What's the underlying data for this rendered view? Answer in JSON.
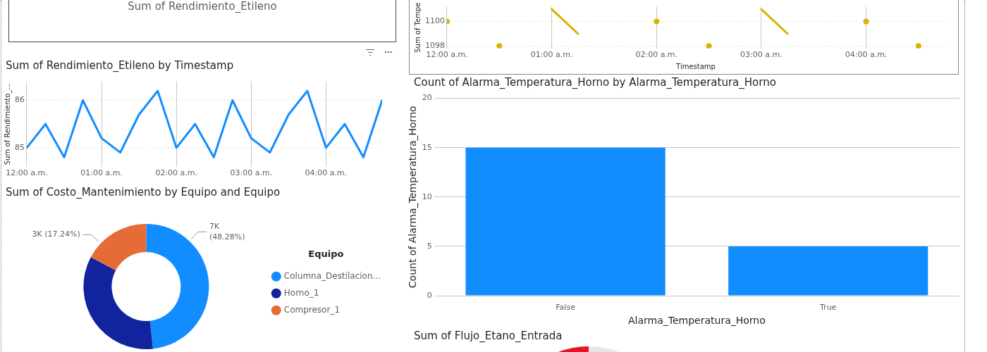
{
  "chart_data": [
    {
      "type": "other",
      "title": "Sum of Rendimiento_Etileno"
    },
    {
      "type": "line",
      "xlabel": "Timestamp",
      "ylabel": "Sum of Tempe",
      "x": [
        0,
        0.25,
        0.5,
        0.75,
        1,
        1.25,
        1.5,
        1.75,
        2,
        2.25,
        2.5,
        2.75,
        3,
        3.25,
        3.5,
        3.75,
        4,
        4.25,
        4.5
      ],
      "xlim": [
        0,
        4.75
      ],
      "xticks": [
        {
          "value": 0,
          "label": "12:00 a.m."
        },
        {
          "value": 1,
          "label": "01:00 a.m."
        },
        {
          "value": 2,
          "label": "02:00 a.m."
        },
        {
          "value": 3,
          "label": "03:00 a.m."
        },
        {
          "value": 4,
          "label": "04:00 a.m."
        }
      ],
      "ylim": [
        1097.8,
        1101.2
      ],
      "yticks": [
        {
          "value": 1098,
          "label": "1098"
        },
        {
          "value": 1100,
          "label": "1100"
        }
      ],
      "grid": true,
      "line_style": "solid",
      "series": [
        {
          "color": "#d9b300",
          "values": [
            1100,
            null,
            1098,
            null,
            1101,
            1099,
            null,
            null,
            1100,
            null,
            1098,
            null,
            1101,
            1099,
            null,
            null,
            1100,
            null,
            1098
          ]
        }
      ]
    },
    {
      "type": "line",
      "title": "Sum of Rendimiento_Etileno by Timestamp",
      "ylabel": "Sum of Rendimiento_...",
      "x": [
        0,
        0.25,
        0.5,
        0.75,
        1,
        1.25,
        1.5,
        1.75,
        2,
        2.25,
        2.5,
        2.75,
        3,
        3.25,
        3.5,
        3.75,
        4,
        4.25,
        4.5,
        4.75
      ],
      "xlim": [
        0,
        4.75
      ],
      "xticks": [
        {
          "value": 0,
          "label": "12:00 a.m."
        },
        {
          "value": 1,
          "label": "01:00 a.m."
        },
        {
          "value": 2,
          "label": "02:00 a.m."
        },
        {
          "value": 3,
          "label": "03:00 a.m."
        },
        {
          "value": 4,
          "label": "04:00 a.m."
        }
      ],
      "ylim": [
        84.6,
        86.4
      ],
      "yticks": [
        85,
        86
      ],
      "grid": true,
      "line_style": "solid",
      "series": [
        {
          "color": "#118dff",
          "values": [
            85,
            85.5,
            84.8,
            86,
            85.2,
            84.9,
            85.7,
            86.2,
            85,
            85.5,
            84.8,
            86,
            85.2,
            84.9,
            85.7,
            86.2,
            85,
            85.5,
            84.8,
            86
          ]
        }
      ]
    },
    {
      "type": "donut",
      "title": "Sum of Costo_Mantenimiento by Equipo and Equipo",
      "legend_title": "Equipo",
      "legend": "right",
      "categories": [
        "Columna_Destilacion...",
        "Horno_1",
        "Compresor_1"
      ],
      "values": [
        48.28,
        34.48,
        17.24
      ],
      "colors": [
        "#118dff",
        "#12239e",
        "#e66c37"
      ],
      "value_labels": [
        "7K\n(48.28%)",
        null,
        "3K (17.24%)"
      ]
    },
    {
      "type": "bar",
      "title": "Count of Alarma_Temperatura_Horno by Alarma_Temperatura_Horno",
      "xlabel": "Alarma_Temperatura_Horno",
      "ylabel": "Count of Alarma_Temperatura_Horno",
      "categories": [
        "False",
        "True"
      ],
      "values": [
        15,
        5
      ],
      "color": "#118dff",
      "ylim": [
        0,
        20
      ],
      "yticks": [
        0,
        5,
        10,
        15,
        20
      ],
      "grid": "y"
    },
    {
      "type": "other",
      "title": "Sum of Flujo_Etano_Entrada"
    }
  ]
}
